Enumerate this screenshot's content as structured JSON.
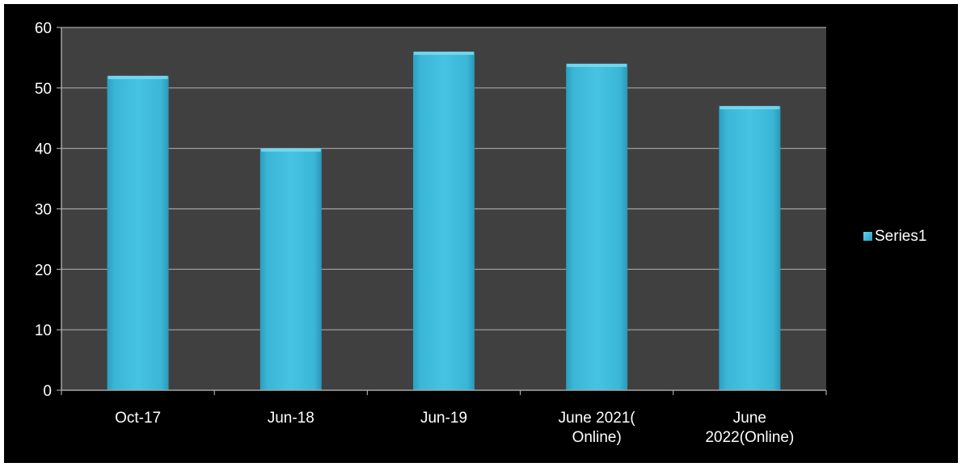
{
  "chart_data": {
    "type": "bar",
    "title": "",
    "xlabel": "",
    "ylabel": "",
    "categories": [
      [
        "Oct-17"
      ],
      [
        "Jun-18"
      ],
      [
        "Jun-19"
      ],
      [
        "June 2021(",
        "Online)"
      ],
      [
        "June",
        "2022(Online)"
      ]
    ],
    "series": [
      {
        "name": "Series1",
        "values": [
          52,
          40,
          56,
          54,
          47
        ],
        "color": "#3cb8d8"
      }
    ],
    "ylim": [
      0,
      60
    ],
    "yticks": [
      "0",
      "10",
      "20",
      "30",
      "40",
      "50",
      "60"
    ],
    "grid": true,
    "legend": "right"
  },
  "colors": {
    "outer_background": "#000000",
    "plot_background": "#404040",
    "gridline": "#a6a6a6",
    "axis_text": "#ffffff",
    "bar_fill": "#3cb8d8"
  }
}
